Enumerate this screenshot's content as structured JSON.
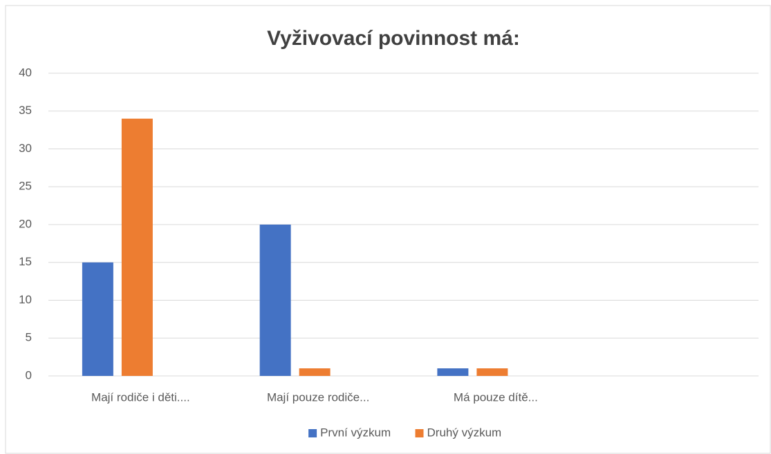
{
  "chart_data": {
    "type": "bar",
    "title": "Vyživovací povinnost má:",
    "categories": [
      "Mají rodiče i děti....",
      "Mají pouze rodiče...",
      "Má pouze dítě...",
      null
    ],
    "series": [
      {
        "name": "První výzkum",
        "color": "#4472c4",
        "values": [
          15,
          20,
          1,
          null
        ]
      },
      {
        "name": "Druhý výzkum",
        "color": "#ed7d31",
        "values": [
          34,
          1,
          1,
          null
        ]
      }
    ],
    "ylim": [
      0,
      40
    ],
    "yticks": [
      0,
      5,
      10,
      15,
      20,
      25,
      30,
      35,
      40
    ],
    "grid": true,
    "legend": "bottom"
  }
}
